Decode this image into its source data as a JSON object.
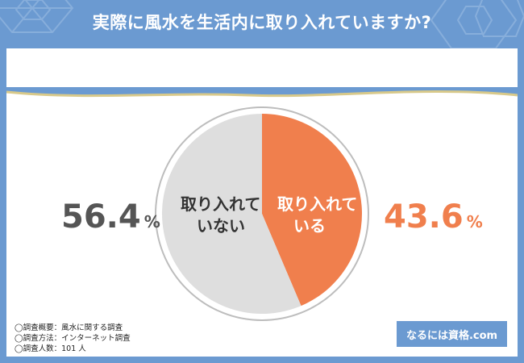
{
  "header": {
    "title": "実際に風水を生活内に取り入れていますか?"
  },
  "chart_data": {
    "type": "pie",
    "categories": [
      "取り入れている",
      "取り入れていない"
    ],
    "values": [
      43.6,
      56.4
    ],
    "unit": "%",
    "slices": [
      {
        "label_line1": "取り入れて",
        "label_line2": "いる",
        "value": 43.6,
        "value_text": "43.6",
        "color": "#f07f4d"
      },
      {
        "label_line1": "取り入れて",
        "label_line2": "いない",
        "value": 56.4,
        "value_text": "56.4",
        "color": "#dedede"
      }
    ],
    "percent_sign": "%",
    "colors": {
      "positive_text": "#f07f4d",
      "negative_text": "#555555",
      "positive_slice_label": "#ffffff",
      "negative_slice_label": "#333333"
    }
  },
  "notes": [
    "◯調査概要：風水に関する調査",
    "◯調査方法：インターネット調査",
    "◯調査人数：101 人"
  ],
  "brand": {
    "label": "なるには資格.com"
  },
  "colors": {
    "header_bg": "#6b9ad1",
    "gold_stripe": "#d8c98a"
  }
}
